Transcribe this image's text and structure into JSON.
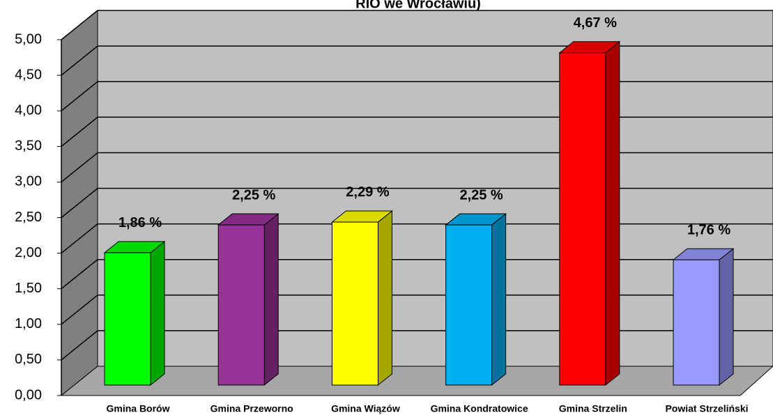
{
  "chart_data": {
    "type": "bar3d",
    "title": "RIO we Wrocławiu)",
    "categories": [
      "Gmina Borów",
      "Gmina Przeworno",
      "Gmina Wiązów",
      "Gmina Kondratowice",
      "Gmina Strzelin",
      "Powiat Strzeliński"
    ],
    "values": [
      1.86,
      2.25,
      2.29,
      2.25,
      4.67,
      1.76
    ],
    "value_labels": [
      "1,86 %",
      "2,25 %",
      "2,29 %",
      "2,25 %",
      "4,67 %",
      "1,76 %"
    ],
    "colors": [
      "#00ff00",
      "#993399",
      "#ffff00",
      "#00b0f0",
      "#ff0000",
      "#9999ff"
    ],
    "ylim": [
      0,
      5
    ],
    "yticks": [
      {
        "value": 0,
        "label": "0,00"
      },
      {
        "value": 0.5,
        "label": "0,50"
      },
      {
        "value": 1,
        "label": "1,00"
      },
      {
        "value": 1.5,
        "label": "1,50"
      },
      {
        "value": 2,
        "label": "2,00"
      },
      {
        "value": 2.5,
        "label": "2,50"
      },
      {
        "value": 3,
        "label": "3,00"
      },
      {
        "value": 3.5,
        "label": "3,50"
      },
      {
        "value": 4,
        "label": "4,00"
      },
      {
        "value": 4.5,
        "label": "4,50"
      },
      {
        "value": 5,
        "label": "5,00"
      }
    ],
    "grid": true
  }
}
